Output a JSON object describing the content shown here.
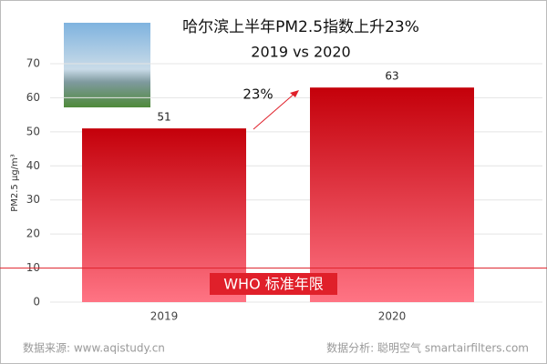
{
  "chart_data": {
    "type": "bar",
    "title": "哈尔滨上半年PM2.5指数上升23%",
    "subtitle": "2019 vs 2020",
    "y_label": "PM2.5 μg/m³",
    "categories": [
      "2019",
      "2020"
    ],
    "values": [
      51,
      63
    ],
    "value_labels": [
      "51",
      "63"
    ],
    "color": "#c4000a",
    "gradient_end": "#ff7484",
    "ylim": [
      0,
      70
    ],
    "yticks": [
      0,
      10,
      20,
      30,
      40,
      50,
      60,
      70
    ],
    "grid": true,
    "annotation": "23%",
    "reference_line": {
      "value": 10,
      "label": "WHO 标准年限",
      "color": "#e0202a"
    },
    "source_left": "数据来源:  www.aqistudy.cn",
    "source_right": "数据分析:  聪明空气 smartairfilters.com"
  }
}
